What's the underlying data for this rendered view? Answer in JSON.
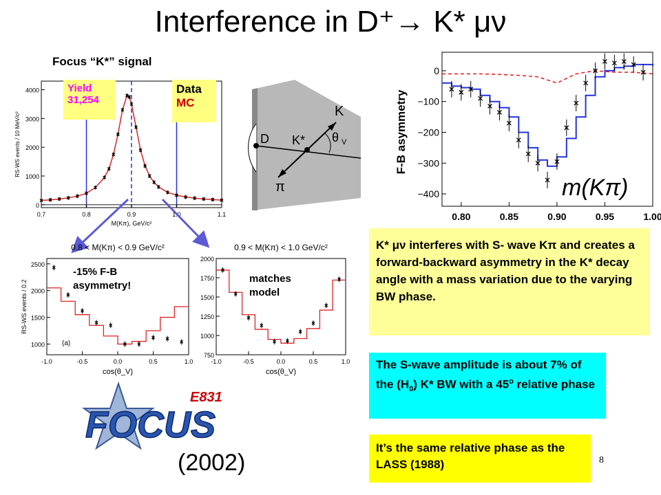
{
  "slide": {
    "title": "Interference in D⁺→ K* μν",
    "focus_label": "Focus “K*” signal",
    "yield_label": "Yield",
    "yield_value": "31,254",
    "legend_data": "Data",
    "legend_mc": "MC",
    "asym_note_1": "-15% F-B",
    "asym_note_2": "asymmetry!",
    "model_note_1": "matches",
    "model_note_2": "model",
    "text1": "K* μν interferes with S- wave Kπ and creates a forward-backward asymmetry in the K* decay angle with a mass variation due to the varying BW phase.",
    "text2_a": "The S-wave amplitude is about 7% of the (H",
    "text2_sub": "0",
    "text2_b": ") K* BW with a 45",
    "text2_sup": "o",
    "text2_c": " relative phase",
    "text3": "It’s the same relative phase as the LASS (1988)",
    "year": "(2002)",
    "page_number": "8",
    "logo_text": "FOCUS",
    "logo_tag": "E831",
    "diagram": {
      "label_k": "K",
      "label_d": "D",
      "label_kstar": "K*",
      "label_pi": "π",
      "label_theta": "θ",
      "label_theta_sub": "V"
    }
  },
  "chart_data": [
    {
      "type": "line",
      "id": "mass",
      "ylabel": "RS-WS events / 10 MeV/c²",
      "xlabel": "M(Kπ), GeV/c²",
      "xlim": [
        0.7,
        1.1
      ],
      "ylim": [
        -100,
        4300
      ],
      "xticks": [
        "0.7",
        "0.8",
        "0.9",
        "1.0",
        "1.1"
      ],
      "yticks": [
        "0",
        "1000",
        "2000",
        "3000",
        "4000"
      ],
      "x": [
        0.7,
        0.72,
        0.74,
        0.76,
        0.78,
        0.8,
        0.82,
        0.84,
        0.85,
        0.86,
        0.87,
        0.88,
        0.89,
        0.895,
        0.9,
        0.91,
        0.92,
        0.93,
        0.94,
        0.95,
        0.96,
        0.98,
        1.0,
        1.02,
        1.04,
        1.06,
        1.08,
        1.1
      ],
      "y": [
        150,
        170,
        200,
        240,
        300,
        400,
        600,
        950,
        1250,
        1750,
        2450,
        3300,
        3800,
        3750,
        3500,
        2700,
        1900,
        1350,
        1000,
        780,
        620,
        430,
        330,
        270,
        230,
        200,
        180,
        160
      ],
      "vlines": [
        0.8,
        0.9,
        1.0
      ]
    },
    {
      "type": "bar",
      "id": "cos_low",
      "title": "0.8 < M(Kπ) < 0.9 GeV/c²",
      "xlabel": "cos(θ_V)",
      "ylabel": "RS-WS events / 0.2",
      "xlim": [
        -1.0,
        1.0
      ],
      "ylim": [
        800,
        2600
      ],
      "xticks": [
        "-1.0",
        "-0.5",
        "0.0",
        "0.5",
        "1.0"
      ],
      "yticks": [
        "1000",
        "1500",
        "2000",
        "2500"
      ],
      "tag": "(a)",
      "bin_edges": [
        -1.0,
        -0.8,
        -0.6,
        -0.4,
        -0.2,
        0.0,
        0.2,
        0.4,
        0.6,
        0.8,
        1.0
      ],
      "mc": [
        2050,
        1800,
        1550,
        1350,
        1150,
        1000,
        1050,
        1250,
        1500,
        1700
      ],
      "points_x": [
        -0.9,
        -0.7,
        -0.5,
        -0.3,
        -0.1,
        0.1,
        0.3,
        0.5,
        0.7,
        0.9
      ],
      "points_y": [
        2430,
        1920,
        1620,
        1400,
        1350,
        1000,
        1000,
        1120,
        1100,
        1040
      ]
    },
    {
      "type": "bar",
      "id": "cos_high",
      "title": "0.9 < M(Kπ) < 1.0 GeV/c²",
      "xlabel": "cos(θ_V)",
      "xlim": [
        -1.0,
        1.0
      ],
      "ylim": [
        750,
        2000
      ],
      "xticks": [
        "-1.0",
        "-0.5",
        "0.0",
        "0.5",
        "1.0"
      ],
      "yticks": [
        "750",
        "1000",
        "1250",
        "1500",
        "1750",
        "2000"
      ],
      "bin_edges": [
        -1.0,
        -0.8,
        -0.6,
        -0.4,
        -0.2,
        0.0,
        0.2,
        0.4,
        0.6,
        0.8,
        1.0
      ],
      "mc": [
        1850,
        1560,
        1270,
        1080,
        950,
        900,
        960,
        1090,
        1330,
        1720
      ],
      "points_x": [
        -0.9,
        -0.7,
        -0.5,
        -0.3,
        -0.1,
        0.1,
        0.3,
        0.5,
        0.7,
        0.9
      ],
      "points_y": [
        1850,
        1540,
        1230,
        1130,
        920,
        930,
        1050,
        1160,
        1390,
        1730
      ]
    },
    {
      "type": "line",
      "id": "asymmetry",
      "ylabel": "F-B asymmetry",
      "annotation": "m(Kπ)",
      "xlim": [
        0.78,
        1.0
      ],
      "ylim": [
        -440,
        60
      ],
      "xticks": [
        "0.80",
        "0.85",
        "0.90",
        "0.95",
        "1.00"
      ],
      "yticks": [
        "0",
        "−100",
        "−200",
        "−300",
        "−400"
      ],
      "blue_x": [
        0.78,
        0.79,
        0.8,
        0.81,
        0.82,
        0.83,
        0.84,
        0.85,
        0.86,
        0.87,
        0.88,
        0.89,
        0.9,
        0.91,
        0.92,
        0.93,
        0.94,
        0.95,
        0.96,
        0.97,
        0.98,
        0.99,
        1.0
      ],
      "blue_y": [
        -40,
        -50,
        -55,
        -60,
        -80,
        -100,
        -120,
        -150,
        -200,
        -250,
        -290,
        -310,
        -280,
        -220,
        -150,
        -80,
        -20,
        0,
        10,
        15,
        20,
        20,
        15
      ],
      "red_x": [
        0.78,
        0.8,
        0.82,
        0.84,
        0.86,
        0.88,
        0.9,
        0.91,
        0.92,
        0.93,
        0.94,
        0.96,
        0.98,
        1.0
      ],
      "red_y": [
        -10,
        -10,
        -10,
        -12,
        -15,
        -20,
        -40,
        -25,
        -10,
        -5,
        0,
        -5,
        -5,
        -10
      ],
      "points_x": [
        0.79,
        0.8,
        0.81,
        0.82,
        0.83,
        0.84,
        0.85,
        0.86,
        0.87,
        0.88,
        0.89,
        0.9,
        0.91,
        0.92,
        0.93,
        0.94,
        0.95,
        0.96,
        0.97,
        0.98,
        0.99
      ],
      "points_y": [
        -60,
        -70,
        -60,
        -90,
        -115,
        -135,
        -170,
        -225,
        -270,
        -300,
        -355,
        -295,
        -185,
        -105,
        -40,
        0,
        30,
        25,
        30,
        20,
        -5
      ]
    }
  ]
}
